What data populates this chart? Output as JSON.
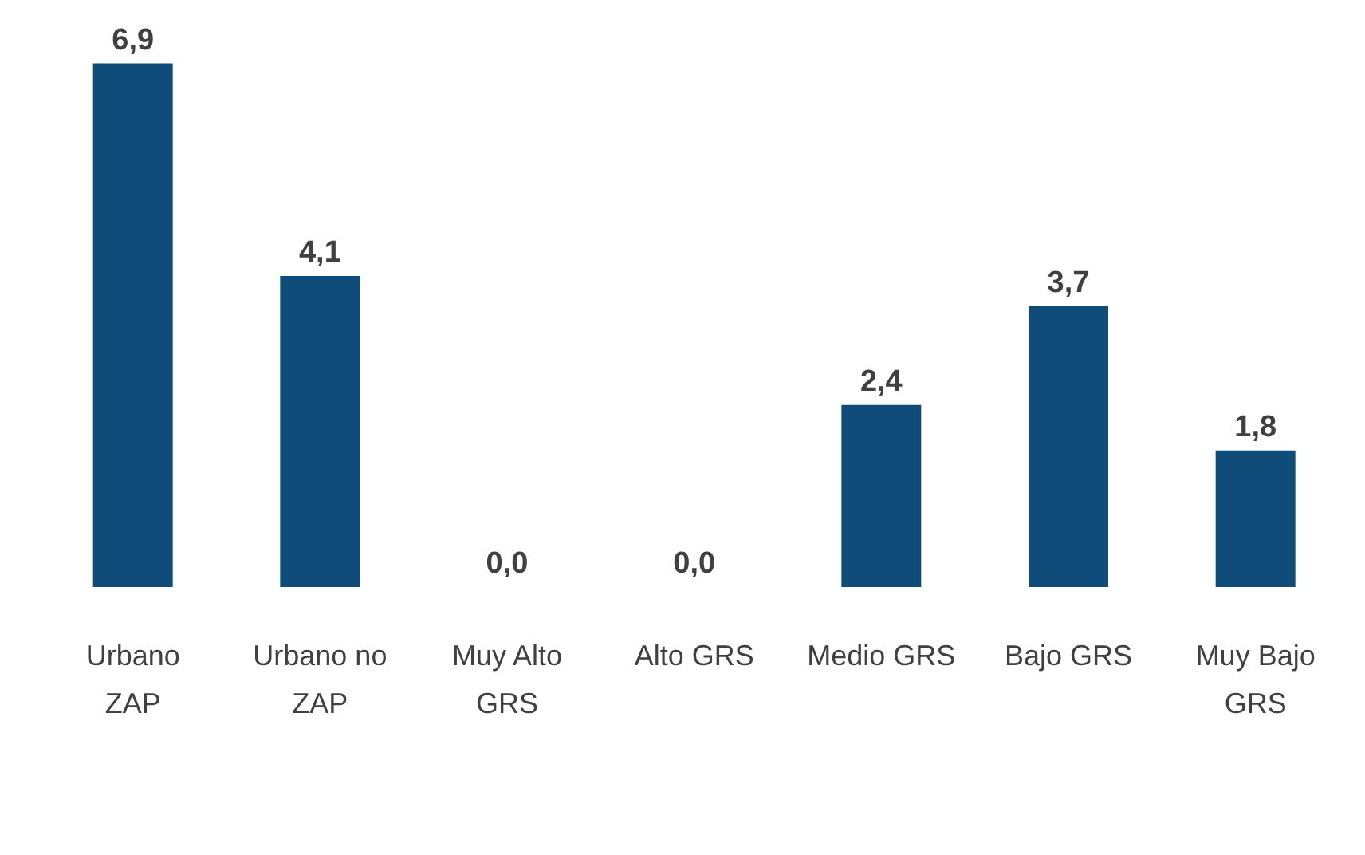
{
  "chart_data": {
    "type": "bar",
    "categories": [
      "Urbano\nZAP",
      "Urbano no\nZAP",
      "Muy Alto\nGRS",
      "Alto GRS",
      "Medio GRS",
      "Bajo GRS",
      "Muy Bajo\nGRS"
    ],
    "values": [
      6.9,
      4.1,
      0.0,
      0.0,
      2.4,
      3.7,
      1.8
    ],
    "value_labels": [
      "6,9",
      "4,1",
      "0,0",
      "0,0",
      "2,4",
      "3,7",
      "1,8"
    ],
    "color": "#0f4c7a"
  }
}
